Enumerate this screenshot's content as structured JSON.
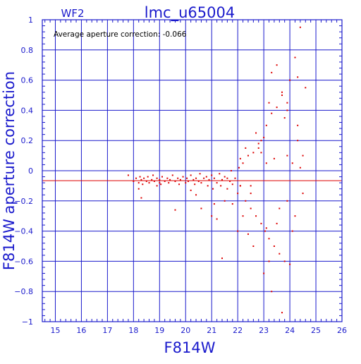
{
  "chart_data": {
    "type": "scatter",
    "title": "lmc_u65004",
    "chip_label": "WF2",
    "annotation": "Average aperture correction: -0.066",
    "xlabel": "F814W",
    "ylabel": "F814W aperture correction",
    "xlim": [
      14.5,
      26
    ],
    "ylim": [
      -1,
      1
    ],
    "x_ticks": [
      15,
      16,
      17,
      18,
      19,
      20,
      21,
      22,
      23,
      24,
      25,
      26
    ],
    "y_ticks": [
      -1,
      -0.8,
      -0.6,
      -0.4,
      -0.2,
      0,
      0.2,
      0.4,
      0.6,
      0.8,
      1
    ],
    "y_tick_labels": [
      "−1",
      "−0.8",
      "−0.6",
      "−0.4",
      "−0.2",
      "0",
      "0.2",
      "0.4",
      "0.6",
      "0.8",
      "1"
    ],
    "grid": true,
    "mean_line": -0.066,
    "colors": {
      "axes": "#1a1acc",
      "points": "#dd0000",
      "mean_line": "#dd0000"
    },
    "series": [
      {
        "x": [
          17.8,
          18.0,
          18.1,
          18.2,
          18.25,
          18.3,
          18.35,
          18.4,
          18.5,
          18.55,
          18.6,
          18.7,
          18.75,
          18.8,
          18.9,
          19.0,
          19.05,
          19.1,
          19.2,
          19.3,
          19.35,
          19.4,
          19.5,
          19.6,
          19.7,
          19.75,
          19.8,
          19.9,
          20.0,
          20.05,
          20.1,
          20.2,
          20.3,
          20.35,
          20.4,
          20.5,
          20.55,
          20.6,
          20.7,
          20.8,
          20.85,
          20.9,
          21.0,
          21.05,
          21.1,
          21.2,
          21.3,
          21.35,
          21.4,
          21.5,
          21.6,
          21.7,
          21.75,
          21.8,
          21.9,
          22.0,
          22.05,
          22.1,
          22.2,
          22.3,
          22.4,
          22.5,
          22.6,
          22.7,
          22.8,
          22.9,
          23.0,
          23.05,
          23.1,
          23.2,
          23.3,
          23.4,
          23.5,
          23.6,
          23.7,
          23.8,
          23.9,
          24.0,
          24.1,
          24.2,
          24.3,
          24.4,
          24.5,
          24.6,
          18.3,
          18.9,
          19.6,
          20.4,
          21.0,
          21.5,
          22.0,
          22.3,
          22.6,
          22.9,
          23.2,
          23.5,
          23.8,
          24.2,
          18.2,
          19.0,
          20.6,
          21.2,
          21.8,
          22.2,
          22.5,
          22.8,
          23.1,
          23.3,
          23.6,
          23.9,
          24.3,
          24.5,
          20.2,
          21.1,
          21.6,
          22.1,
          22.4,
          22.7,
          23.0,
          23.2,
          23.4,
          23.7,
          24.0,
          24.4,
          21.4,
          22.1,
          22.9,
          23.3,
          23.9,
          22.5,
          23.1,
          23.7,
          24.1,
          23.5,
          23.9,
          24.3
        ],
        "y": [
          -0.03,
          -0.07,
          -0.05,
          -0.08,
          -0.04,
          -0.06,
          -0.09,
          -0.05,
          -0.07,
          -0.04,
          -0.08,
          -0.06,
          -0.03,
          -0.07,
          -0.05,
          -0.06,
          -0.09,
          -0.04,
          -0.07,
          -0.05,
          -0.08,
          -0.06,
          -0.03,
          -0.07,
          -0.05,
          -0.09,
          -0.06,
          -0.04,
          -0.08,
          -0.05,
          -0.07,
          -0.03,
          -0.06,
          -0.09,
          -0.05,
          -0.07,
          -0.02,
          -0.08,
          -0.05,
          -0.04,
          -0.1,
          -0.06,
          -0.03,
          -0.12,
          -0.05,
          -0.08,
          -0.02,
          -0.1,
          -0.06,
          -0.04,
          -0.12,
          -0.07,
          0.0,
          -0.09,
          -0.05,
          -0.15,
          0.02,
          -0.1,
          0.05,
          -0.2,
          0.1,
          -0.25,
          0.12,
          -0.3,
          0.15,
          -0.35,
          0.22,
          -0.4,
          0.3,
          -0.45,
          0.38,
          -0.5,
          0.42,
          -0.55,
          0.5,
          -0.6,
          0.45,
          0.6,
          -0.4,
          0.75,
          0.3,
          0.95,
          0.1,
          0.55,
          -0.18,
          -0.1,
          -0.26,
          -0.16,
          -0.3,
          -0.2,
          -0.4,
          0.15,
          -0.5,
          0.2,
          -0.6,
          -0.35,
          0.35,
          -0.3,
          -0.12,
          -0.08,
          -0.25,
          -0.32,
          -0.22,
          -0.3,
          -0.1,
          0.18,
          0.05,
          0.65,
          -0.25,
          0.1,
          0.2,
          -0.15,
          -0.13,
          -0.22,
          -0.05,
          0.08,
          -0.42,
          0.25,
          -0.68,
          0.45,
          0.08,
          0.52,
          -0.62,
          0.02,
          -0.58,
          -0.1,
          0.12,
          -0.8,
          0.4,
          -0.15,
          -0.38,
          -0.94,
          0.05,
          0.7,
          -0.2,
          0.62
        ]
      }
    ]
  }
}
